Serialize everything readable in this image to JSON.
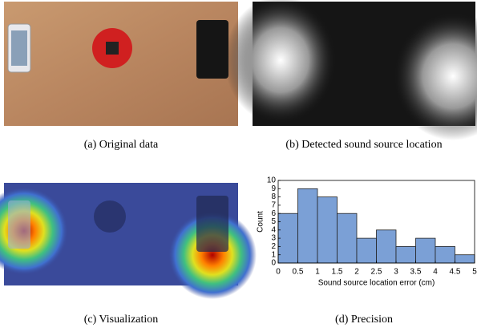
{
  "panels": [
    {
      "caption": "(a) Original data"
    },
    {
      "caption": "(b) Detected sound source location"
    },
    {
      "caption": "(c) Visualization"
    },
    {
      "caption": "(d) Precision"
    }
  ],
  "chart_data": {
    "type": "histogram",
    "bins": [
      0,
      0.5,
      1,
      1.5,
      2,
      2.5,
      3,
      3.5,
      4,
      4.5,
      5
    ],
    "values": [
      6,
      9,
      8,
      6,
      3,
      4,
      2,
      3,
      2,
      1
    ],
    "color": "#7ba0d6",
    "xlabel": "Sound source location error (cm)",
    "ylabel": "Count",
    "xlim": [
      0,
      5
    ],
    "ylim": [
      0,
      10
    ],
    "xticks": [
      0,
      0.5,
      1,
      1.5,
      2,
      2.5,
      3,
      3.5,
      4,
      4.5,
      5
    ],
    "yticks": [
      0,
      1,
      2,
      3,
      4,
      5,
      6,
      7,
      8,
      9,
      10
    ]
  }
}
